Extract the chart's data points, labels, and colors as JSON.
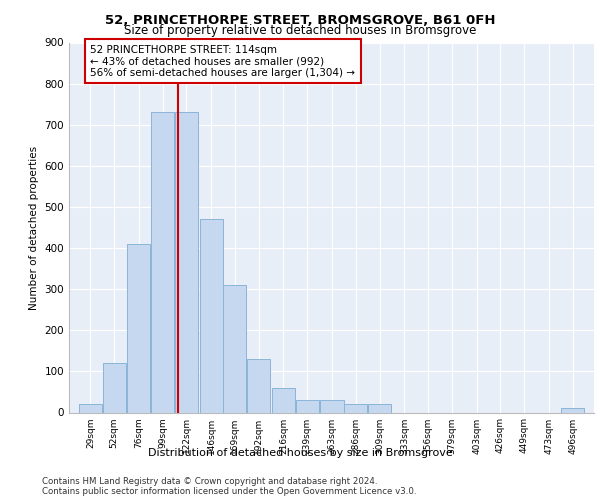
{
  "title1": "52, PRINCETHORPE STREET, BROMSGROVE, B61 0FH",
  "title2": "Size of property relative to detached houses in Bromsgrove",
  "xlabel": "Distribution of detached houses by size in Bromsgrove",
  "ylabel": "Number of detached properties",
  "bar_color": "#c5d8ef",
  "bar_edge_color": "#8ab4d8",
  "vline_color": "#cc0000",
  "vline_x": 114,
  "categories": [
    29,
    52,
    76,
    99,
    122,
    146,
    169,
    192,
    216,
    239,
    263,
    286,
    309,
    333,
    356,
    379,
    403,
    426,
    449,
    473,
    496
  ],
  "values": [
    20,
    120,
    410,
    730,
    730,
    470,
    310,
    130,
    60,
    30,
    30,
    20,
    20,
    0,
    0,
    0,
    0,
    0,
    0,
    0,
    10
  ],
  "bin_width": 23,
  "annotation_line1": "52 PRINCETHORPE STREET: 114sqm",
  "annotation_line2": "← 43% of detached houses are smaller (992)",
  "annotation_line3": "56% of semi-detached houses are larger (1,304) →",
  "annotation_box_color": "#ffffff",
  "annotation_box_edge": "#cc0000",
  "ylim": [
    0,
    900
  ],
  "yticks": [
    0,
    100,
    200,
    300,
    400,
    500,
    600,
    700,
    800,
    900
  ],
  "footer1": "Contains HM Land Registry data © Crown copyright and database right 2024.",
  "footer2": "Contains public sector information licensed under the Open Government Licence v3.0.",
  "plot_bg_color": "#e8eef7",
  "grid_color": "#ffffff"
}
